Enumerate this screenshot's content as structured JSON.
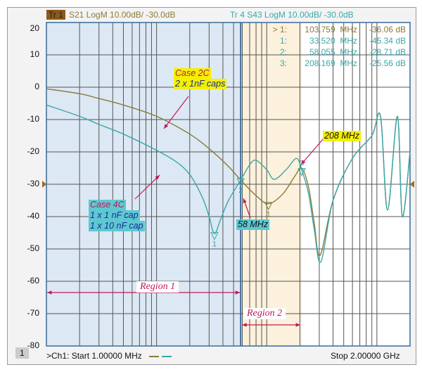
{
  "header": {
    "tr1_badge": "Tr 1",
    "tr1_text": "S21 LogM 10.00dB/  -30.0dB",
    "tr4_text": "Tr  4   S43 LogM 10.00dB/  -30.0dB"
  },
  "markers": [
    {
      "label": "> 1:",
      "freq": "103.759  MHz",
      "value": "-36.06 dB",
      "trace": "S21"
    },
    {
      "label": "1:",
      "freq": "33.520  MHz",
      "value": "-45.34 dB",
      "trace": "S43"
    },
    {
      "label": "2:",
      "freq": "58.055  MHz",
      "value": "-28.71 dB",
      "trace": "S43"
    },
    {
      "label": "3:",
      "freq": "208.169  MHz",
      "value": "-25.56 dB",
      "trace": "S43"
    }
  ],
  "annotations": {
    "case2c_title": "Case 2C",
    "case2c_desc": "2 x 1nF caps",
    "case4c_title": "Case 4C",
    "case4c_l1": "1 x 1 nF cap",
    "case4c_l2": "1 x 10 nF cap",
    "f58": "58 MHz",
    "f208": "208 MHz",
    "region1": "Region 1",
    "region2": "Region 2"
  },
  "footer": {
    "channel": "1",
    "start": ">Ch1:  Start   1.00000 MHz",
    "stop": "Stop  2.00000 GHz"
  },
  "colors": {
    "s21": "#8a7a3a",
    "s43": "#3aa8a8",
    "region1": "#dce8f4",
    "region2": "#fbf1dc",
    "arrow": "#c0185a"
  },
  "chart_data": {
    "type": "line",
    "xscale": "log",
    "xlim_mhz": [
      1,
      2000
    ],
    "ylim": [
      -80,
      20
    ],
    "yticks": [
      20,
      10,
      0,
      -10,
      -20,
      -30,
      -40,
      -50,
      -60,
      -70,
      -80
    ],
    "grid": true,
    "regions": [
      {
        "name": "Region 1",
        "from_mhz": 1,
        "to_mhz": 58
      },
      {
        "name": "Region 2",
        "from_mhz": 58,
        "to_mhz": 208
      }
    ],
    "series": [
      {
        "name": "S21",
        "x": [
          1,
          2,
          3,
          5,
          10,
          20,
          30,
          45,
          58,
          80,
          103.8,
          140,
          180,
          208,
          240,
          270,
          305,
          400,
          600,
          900,
          1079,
          1250,
          1535,
          1700,
          2000
        ],
        "y": [
          -0.5,
          -2,
          -3.5,
          -5.5,
          -9,
          -14.5,
          -19,
          -24.5,
          -28.7,
          -33.5,
          -36,
          -33,
          -27.5,
          -25,
          -31,
          -42,
          -52,
          -35,
          -22,
          -15,
          -9,
          -38,
          -9,
          -40,
          -20
        ]
      },
      {
        "name": "S43",
        "x": [
          1,
          2,
          3,
          5,
          10,
          15,
          20,
          26,
          30,
          33.5,
          38,
          45,
          58,
          70,
          80,
          100,
          117,
          150,
          186,
          208,
          240,
          270,
          310,
          400,
          600,
          900,
          1079,
          1250,
          1535,
          1700,
          2000
        ],
        "y": [
          -5.5,
          -9,
          -11.5,
          -14.5,
          -19.5,
          -23,
          -27,
          -34,
          -40,
          -45.3,
          -41,
          -35,
          -28.7,
          -24,
          -22.6,
          -25.5,
          -28.5,
          -25.5,
          -22,
          -25.6,
          -33,
          -44,
          -54,
          -35,
          -22,
          -15,
          -9,
          -38,
          -9,
          -40,
          -20
        ]
      }
    ]
  }
}
